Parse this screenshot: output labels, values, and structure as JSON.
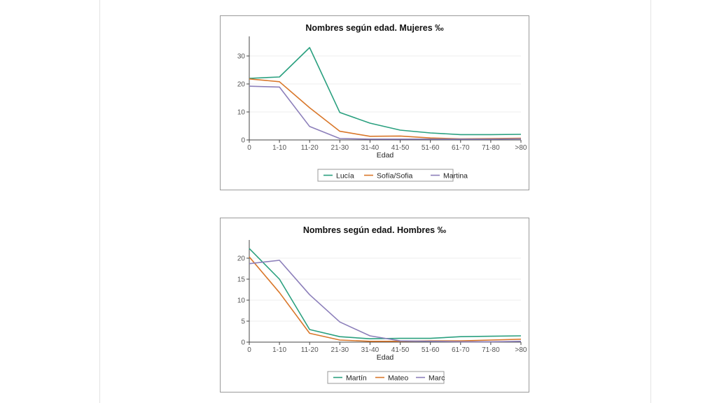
{
  "chart_data": [
    {
      "type": "line",
      "title": "Nombres según edad. Mujeres ‰",
      "xlabel": "Edad",
      "ylabel": "",
      "categories": [
        "0",
        "1-10",
        "11-20",
        "21-30",
        "31-40",
        "41-50",
        "51-60",
        "61-70",
        "71-80",
        ">80"
      ],
      "ylim": [
        0,
        35
      ],
      "yticks": [
        0,
        10,
        20,
        30
      ],
      "grid": true,
      "legend": "bottom",
      "series": [
        {
          "name": "Lucía",
          "color": "#2aa07f",
          "values": [
            22.0,
            22.5,
            33.0,
            9.8,
            6.0,
            3.5,
            2.5,
            1.9,
            1.9,
            2.0
          ]
        },
        {
          "name": "Sofía/Sofia",
          "color": "#d9772a",
          "values": [
            21.8,
            20.8,
            11.5,
            3.1,
            1.3,
            1.4,
            0.7,
            0.4,
            0.5,
            0.6
          ]
        },
        {
          "name": "Martina",
          "color": "#8c7fba",
          "values": [
            19.2,
            18.9,
            4.8,
            0.5,
            0.3,
            0.3,
            0.3,
            0.3,
            0.3,
            0.4
          ]
        }
      ]
    },
    {
      "type": "line",
      "title": "Nombres según edad. Hombres ‰",
      "xlabel": "Edad",
      "ylabel": "",
      "categories": [
        "0",
        "1-10",
        "11-20",
        "21-30",
        "31-40",
        "41-50",
        "51-60",
        "61-70",
        "71-80",
        ">80"
      ],
      "ylim": [
        0,
        23
      ],
      "yticks": [
        0,
        5,
        10,
        15,
        20
      ],
      "grid": true,
      "legend": "bottom",
      "series": [
        {
          "name": "Martín",
          "color": "#2aa07f",
          "values": [
            22.3,
            15.0,
            3.0,
            1.3,
            0.8,
            0.9,
            0.9,
            1.3,
            1.4,
            1.5
          ]
        },
        {
          "name": "Mateo",
          "color": "#d9772a",
          "values": [
            20.3,
            11.8,
            2.1,
            0.5,
            0.2,
            0.2,
            0.3,
            0.3,
            0.5,
            0.7
          ]
        },
        {
          "name": "Marc",
          "color": "#8c7fba",
          "values": [
            18.7,
            19.5,
            11.3,
            4.8,
            1.5,
            0.3,
            0.2,
            0.1,
            0.1,
            0.2
          ]
        }
      ]
    }
  ]
}
